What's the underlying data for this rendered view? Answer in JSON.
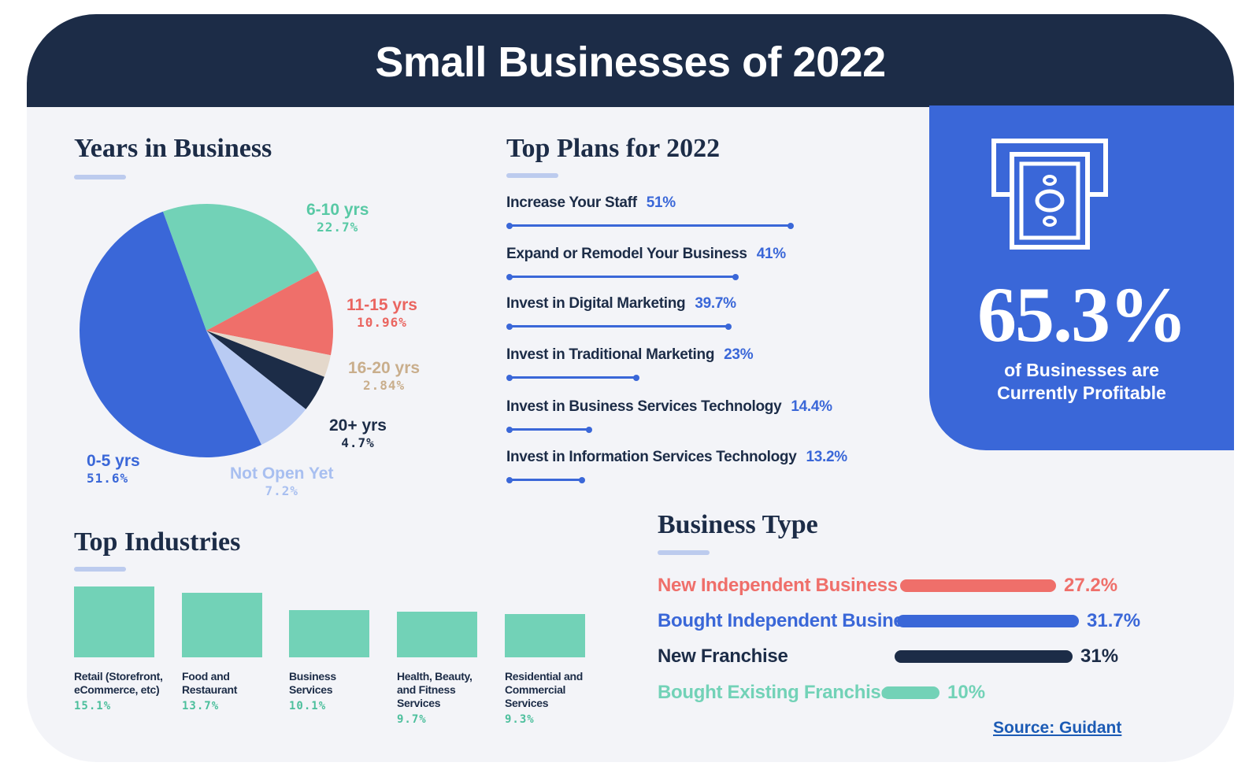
{
  "title": "Small Businesses of 2022",
  "sections": {
    "years": "Years in Business",
    "plans": "Top Plans for 2022",
    "industries": "Top Industries",
    "business_type": "Business Type"
  },
  "profit": {
    "value": "65.3%",
    "line1": "of Businesses are",
    "line2": "Currently Profitable",
    "icon": "cash-machine-icon"
  },
  "source": "Source: Guidant",
  "colors": {
    "navy": "#1c2c47",
    "blue": "#3a67d8",
    "teal": "#72d2b7",
    "coral": "#ef6f6a",
    "beige": "#e4d8cb",
    "lightblue": "#b9cbf3"
  },
  "chart_data": [
    {
      "type": "pie",
      "title": "Years in Business",
      "slices": [
        {
          "label": "6-10 yrs",
          "pct_label": "22.7%",
          "value": 22.7,
          "color": "#72d2b7",
          "text_color": "#58c9a5"
        },
        {
          "label": "11-15 yrs",
          "pct_label": "10.96%",
          "value": 10.96,
          "color": "#ef6f6a",
          "text_color": "#ea6560"
        },
        {
          "label": "16-20 yrs",
          "pct_label": "2.84%",
          "value": 2.84,
          "color": "#e4d8cb",
          "text_color": "#c9ae8c"
        },
        {
          "label": "20+ yrs",
          "pct_label": "4.7%",
          "value": 4.7,
          "color": "#1c2c47",
          "text_color": "#1c2c47"
        },
        {
          "label": "Not Open Yet",
          "pct_label": "7.2%",
          "value": 7.2,
          "color": "#b9cbf3",
          "text_color": "#a8bff0"
        },
        {
          "label": "0-5 yrs",
          "pct_label": "51.6%",
          "value": 51.6,
          "color": "#3a67d8",
          "text_color": "#3a67d8"
        }
      ]
    },
    {
      "type": "bar",
      "title": "Top Plans for 2022",
      "orientation": "horizontal",
      "categories": [
        "Increase Your Staff",
        "Expand or Remodel Your Business",
        "Invest in Digital Marketing",
        "Invest in Traditional Marketing",
        "Invest in Business Services Technology",
        "Invest in Information Services Technology"
      ],
      "value_labels": [
        "51%",
        "41%",
        "39.7%",
        "23%",
        "14.4%",
        "13.2%"
      ],
      "values": [
        51,
        41,
        39.7,
        23,
        14.4,
        13.2
      ]
    },
    {
      "type": "bar",
      "title": "Top Industries",
      "items": [
        {
          "lines": [
            "Retail (Storefront,",
            "eCommerce, etc)"
          ],
          "value_label": "15.1%",
          "value": 15.1
        },
        {
          "lines": [
            "Food and",
            "Restaurant"
          ],
          "value_label": "13.7%",
          "value": 13.7
        },
        {
          "lines": [
            "Business",
            "Services"
          ],
          "value_label": "10.1%",
          "value": 10.1
        },
        {
          "lines": [
            "Health, Beauty,",
            "and Fitness",
            "Services"
          ],
          "value_label": "9.7%",
          "value": 9.7
        },
        {
          "lines": [
            "Residential and",
            "Commercial",
            "Services"
          ],
          "value_label": "9.3%",
          "value": 9.3
        }
      ]
    },
    {
      "type": "bar",
      "title": "Business Type",
      "orientation": "horizontal",
      "items": [
        {
          "label": "New Independent Business",
          "value_label": "27.2%",
          "value": 27.2,
          "color": "#ef6f6a"
        },
        {
          "label": "Bought Independent Business",
          "value_label": "31.7%",
          "value": 31.7,
          "color": "#3a67d8"
        },
        {
          "label": "New Franchise",
          "value_label": "31%",
          "value": 31,
          "color": "#1c2c47"
        },
        {
          "label": "Bought Existing Franchise",
          "value_label": "10%",
          "value": 10,
          "color": "#72d2b7"
        }
      ]
    }
  ]
}
